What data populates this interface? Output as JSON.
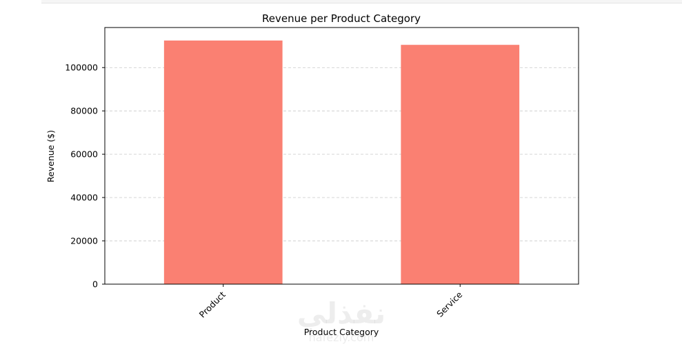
{
  "watermark": {
    "arabic": "نفذلي",
    "latin": "nafezly.com"
  },
  "chart_data": {
    "type": "bar",
    "title": "Revenue per Product Category",
    "xlabel": "Product Category",
    "ylabel": "Revenue ($)",
    "categories": [
      "Product",
      "Service"
    ],
    "values": [
      112500,
      110500
    ],
    "ylim": [
      0,
      118500
    ],
    "yticks": [
      0,
      20000,
      40000,
      60000,
      80000,
      100000
    ],
    "bar_color": "#fa8072",
    "grid": "y-dashed",
    "tick_label_rotation": 45
  }
}
